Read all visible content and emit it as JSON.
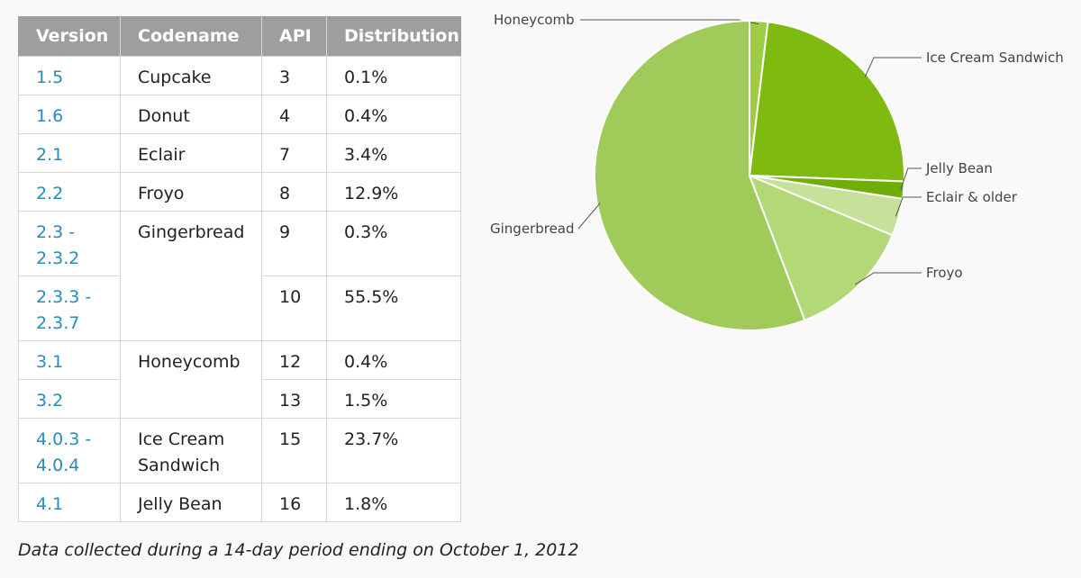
{
  "table": {
    "headers": [
      "Version",
      "Codename",
      "API",
      "Distribution"
    ],
    "rows": [
      {
        "version": "1.5",
        "codename": "Cupcake",
        "api": "3",
        "distribution": "0.1%"
      },
      {
        "version": "1.6",
        "codename": "Donut",
        "api": "4",
        "distribution": "0.4%"
      },
      {
        "version": "2.1",
        "codename": "Eclair",
        "api": "7",
        "distribution": "3.4%"
      },
      {
        "version": "2.2",
        "codename": "Froyo",
        "api": "8",
        "distribution": "12.9%"
      },
      {
        "version": "2.3 - 2.3.2",
        "codename": "Gingerbread",
        "api": "9",
        "distribution": "0.3%"
      },
      {
        "version": "2.3.3 - 2.3.7",
        "codename": "Gingerbread",
        "api": "10",
        "distribution": "55.5%"
      },
      {
        "version": "3.1",
        "codename": "Honeycomb",
        "api": "12",
        "distribution": "0.4%"
      },
      {
        "version": "3.2",
        "codename": "Honeycomb",
        "api": "13",
        "distribution": "1.5%"
      },
      {
        "version": "4.0.3 - 4.0.4",
        "codename": "Ice Cream Sandwich",
        "api": "15",
        "distribution": "23.7%"
      },
      {
        "version": "4.1",
        "codename": "Jelly Bean",
        "api": "16",
        "distribution": "1.8%"
      }
    ]
  },
  "chart_data": {
    "type": "pie",
    "slices": [
      {
        "label": "Honeycomb",
        "value": 1.9,
        "color": "#9fcc44"
      },
      {
        "label": "Ice Cream Sandwich",
        "value": 23.7,
        "color": "#7fba11"
      },
      {
        "label": "Jelly Bean",
        "value": 1.8,
        "color": "#6fad08"
      },
      {
        "label": "Eclair & older",
        "value": 3.9,
        "color": "#c6e29a"
      },
      {
        "label": "Froyo",
        "value": 12.9,
        "color": "#b2d878"
      },
      {
        "label": "Gingerbread",
        "value": 55.8,
        "color": "#a0cb5a"
      }
    ],
    "start_angle_deg": 0,
    "direction": "clockwise",
    "slice_border_color": "#ffffff"
  },
  "footnote": "Data collected during a 14-day period ending on October 1, 2012"
}
